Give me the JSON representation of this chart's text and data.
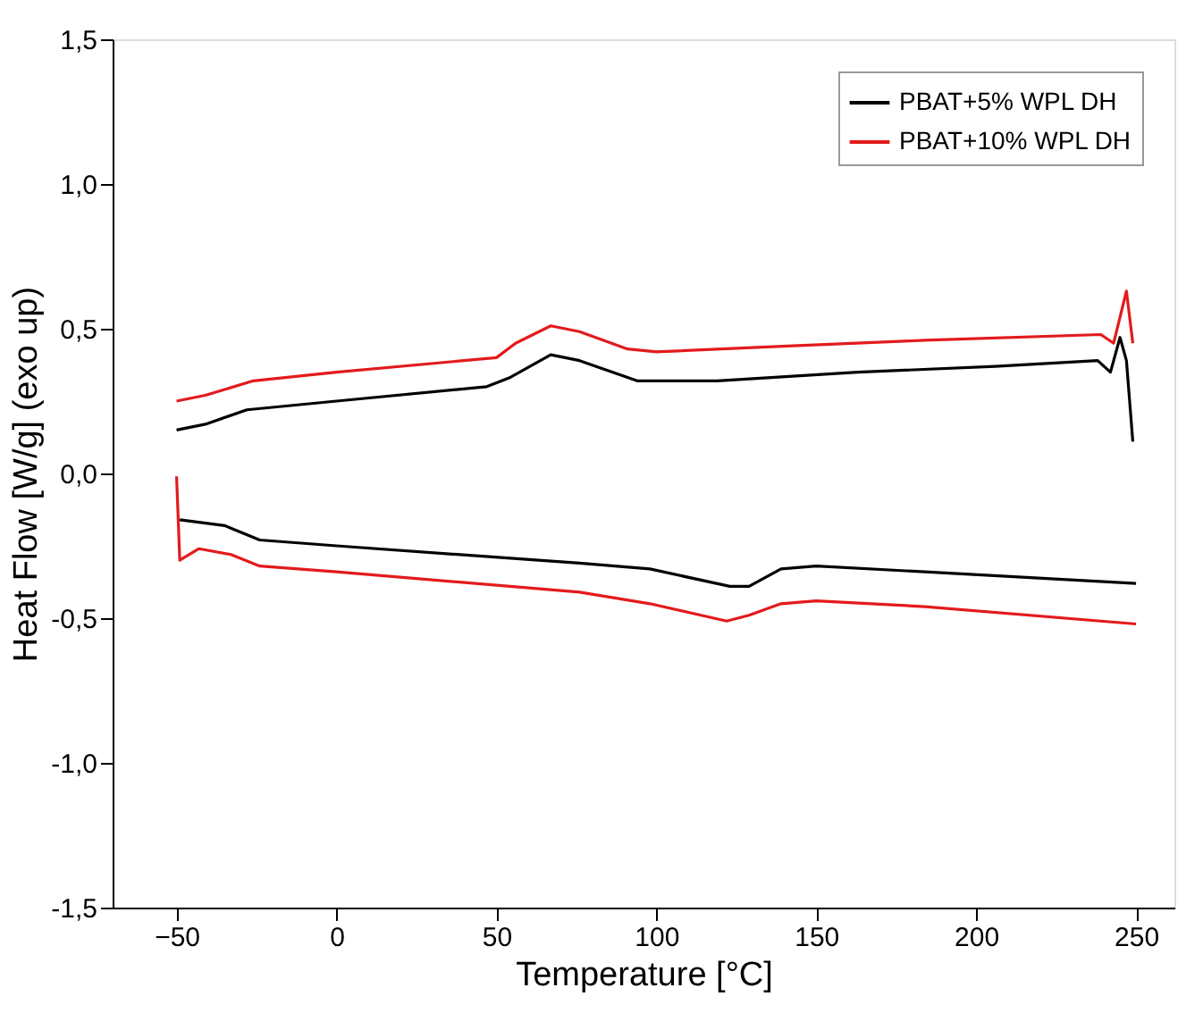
{
  "chart_data": {
    "type": "line",
    "xlabel": "Temperature [°C]",
    "ylabel": "Heat Flow [W/g] (exo up)",
    "xlim": [
      -70,
      262
    ],
    "xticks": [
      -50,
      0,
      50,
      100,
      150,
      200,
      250
    ],
    "ylim": [
      -1.5,
      1.5
    ],
    "yticks": [
      {
        "value": -1.5,
        "label": "-1,5"
      },
      {
        "value": -1.0,
        "label": "-1,0"
      },
      {
        "value": -0.5,
        "label": "-0,5"
      },
      {
        "value": 0,
        "label": "0,0"
      },
      {
        "value": 0.5,
        "label": "0,5"
      },
      {
        "value": 1.0,
        "label": "1,0"
      },
      {
        "value": 1.5,
        "label": "1,5"
      }
    ],
    "legend": "top right",
    "grid": false,
    "marker": "none",
    "line_style": "solid",
    "series": [
      {
        "name": "PBAT+5% WPL DH",
        "color": "#000000",
        "x": [
          -50,
          -41,
          -28,
          0,
          47,
          54,
          67,
          76,
          94,
          119,
          163,
          206,
          238,
          242,
          245,
          247,
          249
        ],
        "values": [
          0.15,
          0.17,
          0.22,
          0.25,
          0.3,
          0.33,
          0.41,
          0.39,
          0.32,
          0.32,
          0.35,
          0.37,
          0.39,
          0.35,
          0.47,
          0.39,
          0.11
        ]
      },
      {
        "name": "PBAT+10% WPL DH",
        "color": "#e31a1c",
        "x": [
          -50,
          -41,
          -26,
          0,
          50,
          56,
          67,
          76,
          91,
          100,
          141,
          184,
          239,
          243,
          247,
          249
        ],
        "values": [
          0.25,
          0.27,
          0.32,
          0.35,
          0.4,
          0.45,
          0.51,
          0.49,
          0.43,
          0.42,
          0.44,
          0.46,
          0.48,
          0.45,
          0.63,
          0.45
        ]
      },
      {
        "color": "#000000",
        "x": [
          -49,
          -35,
          -24,
          0,
          76,
          98,
          123,
          129,
          139,
          150,
          184,
          250
        ],
        "values": [
          -0.16,
          -0.18,
          -0.23,
          -0.25,
          -0.31,
          -0.33,
          -0.39,
          -0.39,
          -0.33,
          -0.32,
          -0.34,
          -0.38
        ]
      },
      {
        "color": "#e31a1c",
        "x": [
          -50,
          -49,
          -43,
          -33,
          -24,
          0,
          76,
          98,
          122,
          129,
          139,
          150,
          184,
          250
        ],
        "values": [
          -0.01,
          -0.3,
          -0.26,
          -0.28,
          -0.32,
          -0.34,
          -0.41,
          -0.45,
          -0.51,
          -0.49,
          -0.45,
          -0.44,
          -0.46,
          -0.52
        ]
      }
    ]
  }
}
